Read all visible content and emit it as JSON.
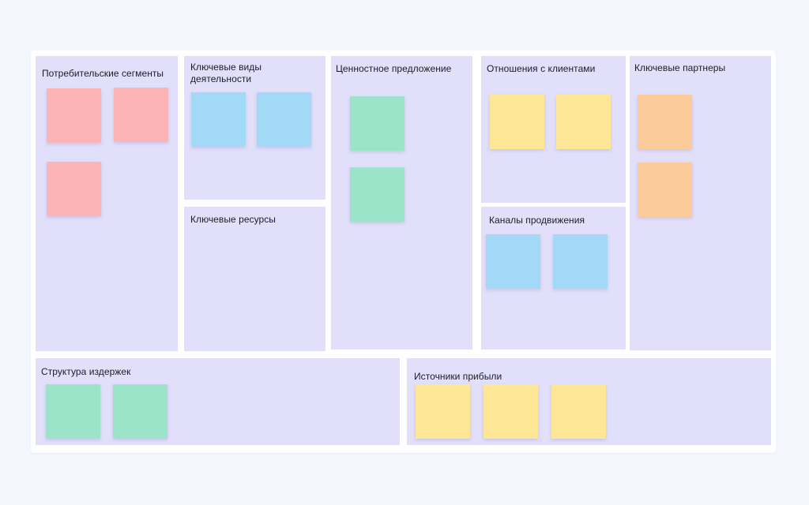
{
  "board": {
    "colors": {
      "block_bg": "#e1dffa",
      "note_pink": "#fbb5b7",
      "note_blue": "#a2d9f6",
      "note_green": "#9be3c9",
      "note_yellow": "#fde695",
      "note_orange": "#fbcc99"
    },
    "blocks": {
      "customer_segments": {
        "title": "Потребительские сегменты",
        "notes": [
          "pink",
          "pink",
          "pink"
        ]
      },
      "key_activities": {
        "title": "Ключевые виды деятельности",
        "notes": [
          "blue",
          "blue"
        ]
      },
      "key_resources": {
        "title": "Ключевые ресурсы",
        "notes": []
      },
      "value_proposition": {
        "title": "Ценностное предложение",
        "notes": [
          "green",
          "green"
        ]
      },
      "customer_relationships": {
        "title": "Отношения с клиентами",
        "notes": [
          "yellow",
          "yellow"
        ]
      },
      "channels": {
        "title": "Каналы продвижения",
        "notes": [
          "blue",
          "blue"
        ]
      },
      "key_partners": {
        "title": "Ключевые партнеры",
        "notes": [
          "orange",
          "orange"
        ]
      },
      "cost_structure": {
        "title": "Структура издержек",
        "notes": [
          "green",
          "green"
        ]
      },
      "revenue_streams": {
        "title": "Источники прибыли",
        "notes": [
          "yellow",
          "yellow",
          "yellow"
        ]
      }
    }
  }
}
